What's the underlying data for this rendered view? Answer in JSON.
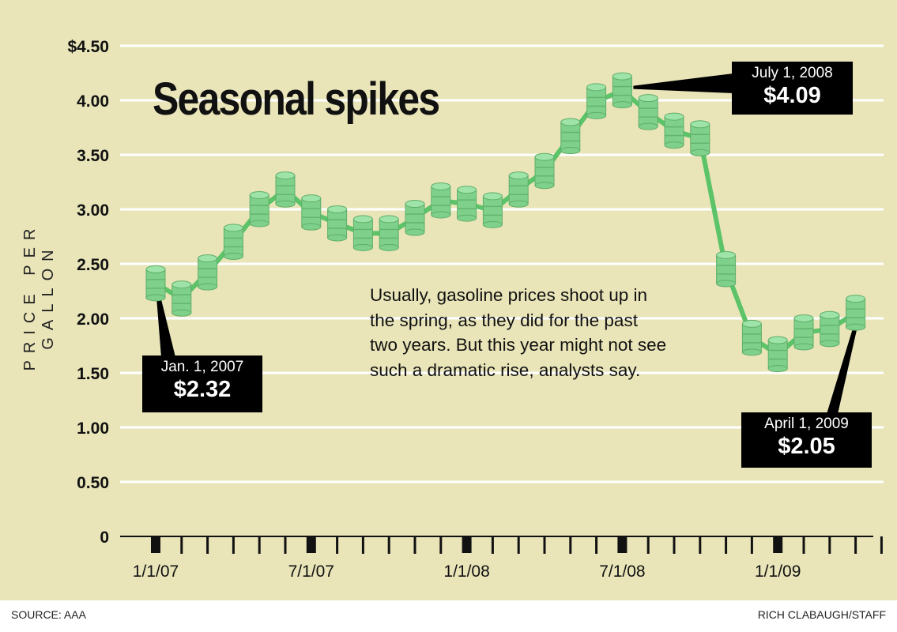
{
  "chart_data": {
    "type": "line",
    "title": "Seasonal spikes",
    "ylabel": "PRICE PER GALLON",
    "xlabel": "",
    "ylim": [
      0,
      4.5
    ],
    "yticks": [
      "$4.50",
      "4.00",
      "3.50",
      "3.00",
      "2.50",
      "2.00",
      "1.50",
      "1.00",
      "0.50",
      "0"
    ],
    "ytick_values": [
      4.5,
      4.0,
      3.5,
      3.0,
      2.5,
      2.0,
      1.5,
      1.0,
      0.5,
      0
    ],
    "xticks": [
      "1/1/07",
      "7/1/07",
      "1/1/08",
      "7/1/08",
      "1/1/09"
    ],
    "xtick_month_index": [
      0,
      6,
      12,
      18,
      24
    ],
    "grid": true,
    "x": [
      "Jan 2007",
      "Feb 2007",
      "Mar 2007",
      "Apr 2007",
      "May 2007",
      "Jun 2007",
      "Jul 2007",
      "Aug 2007",
      "Sep 2007",
      "Oct 2007",
      "Nov 2007",
      "Dec 2007",
      "Jan 2008",
      "Feb 2008",
      "Mar 2008",
      "Apr 2008",
      "May 2008",
      "Jun 2008",
      "Jul 2008",
      "Aug 2008",
      "Sep 2008",
      "Oct 2008",
      "Nov 2008",
      "Dec 2008",
      "Jan 2009",
      "Feb 2009",
      "Mar 2009",
      "Apr 2009"
    ],
    "series": [
      {
        "name": "Gas price per gallon",
        "values": [
          2.32,
          2.18,
          2.42,
          2.7,
          3.0,
          3.18,
          2.97,
          2.87,
          2.78,
          2.78,
          2.92,
          3.08,
          3.05,
          2.99,
          3.18,
          3.35,
          3.67,
          3.99,
          4.09,
          3.89,
          3.72,
          3.65,
          2.45,
          1.82,
          1.67,
          1.87,
          1.9,
          2.05
        ]
      }
    ],
    "annotations": [
      {
        "date": "Jan. 1, 2007",
        "value": "$2.32",
        "index": 0
      },
      {
        "date": "July 1, 2008",
        "value": "$4.09",
        "index": 18
      },
      {
        "date": "April 1, 2009",
        "value": "$2.05",
        "index": 27
      }
    ],
    "note": "Usually, gasoline prices shoot up in the spring, as they did for the past two years. But this year might not see such a dramatic rise, analysts say."
  },
  "colors": {
    "background": "#e9e5b9",
    "barrel": "#7fd08a",
    "line": "#5cc368",
    "grid": "#ffffff"
  },
  "footer": {
    "source": "SOURCE: AAA",
    "credit": "RICH CLABAUGH/STAFF"
  }
}
